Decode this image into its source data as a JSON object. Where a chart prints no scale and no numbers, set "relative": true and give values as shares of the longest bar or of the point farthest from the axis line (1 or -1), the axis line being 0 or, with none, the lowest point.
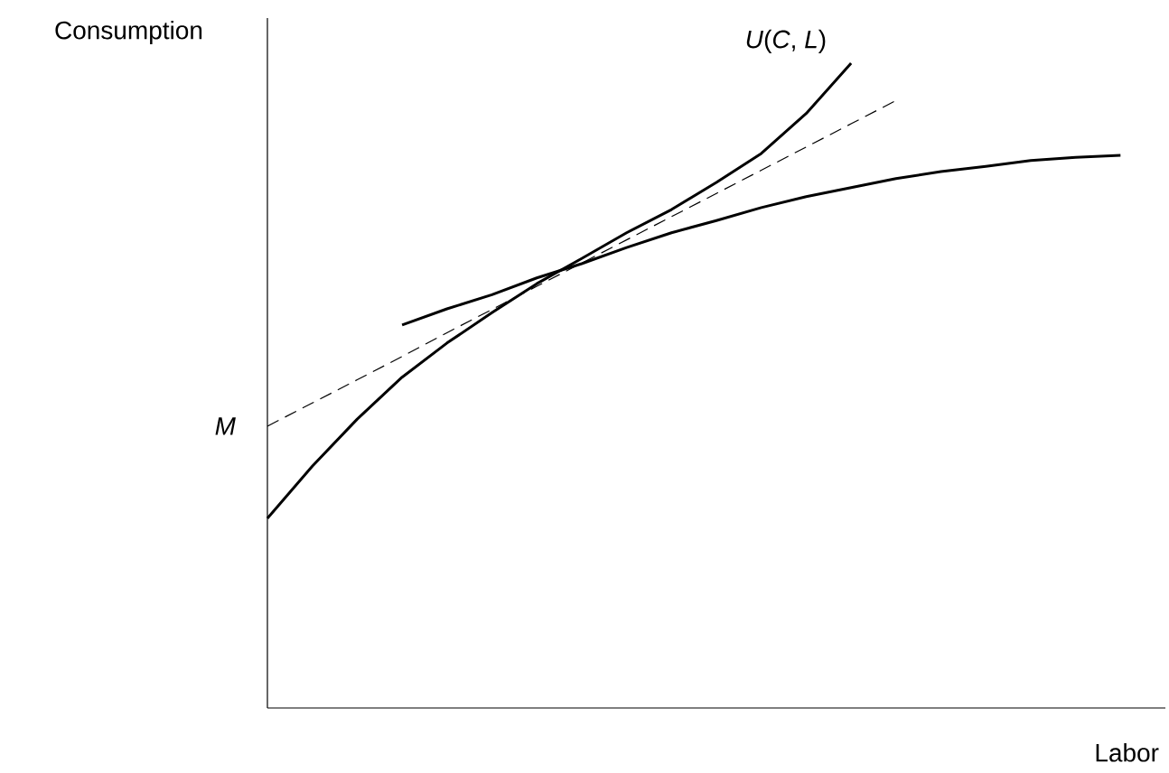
{
  "chart_data": {
    "type": "line",
    "relative": true,
    "xlabel": "Labor",
    "ylabel": "Consumption",
    "marker": "none",
    "categories": [
      null,
      null,
      null,
      null,
      null,
      null,
      null,
      null,
      null,
      null,
      null,
      null,
      null,
      null,
      null,
      null,
      null,
      null,
      null,
      null,
      null
    ],
    "annotations": [
      "*M*"
    ],
    "series": [
      {
        "name": "*U*(*C*, *L*)",
        "color": "#000000",
        "line_style": "solid",
        "values": [
          0.294,
          0.375,
          0.448,
          0.513,
          0.566,
          0.613,
          0.658,
          0.697,
          0.737,
          0.773,
          0.815,
          0.86,
          0.922,
          1.0,
          null,
          null,
          null,
          null,
          null,
          null,
          null
        ]
      },
      {
        "color": "#000000",
        "line_style": "solid",
        "values": [
          null,
          null,
          null,
          0.594,
          0.619,
          0.641,
          0.667,
          0.689,
          0.714,
          0.737,
          0.756,
          0.776,
          0.793,
          0.807,
          0.821,
          0.832,
          0.84,
          0.849,
          0.854,
          0.857,
          null
        ]
      },
      {
        "color": "#000000",
        "line_style": "dashed",
        "values": [
          0.437,
          0.473,
          0.509,
          0.545,
          0.582,
          0.618,
          0.654,
          0.69,
          0.726,
          0.762,
          0.798,
          0.834,
          0.87,
          0.906,
          0.942,
          null,
          null,
          null,
          null,
          null,
          null
        ]
      }
    ]
  }
}
